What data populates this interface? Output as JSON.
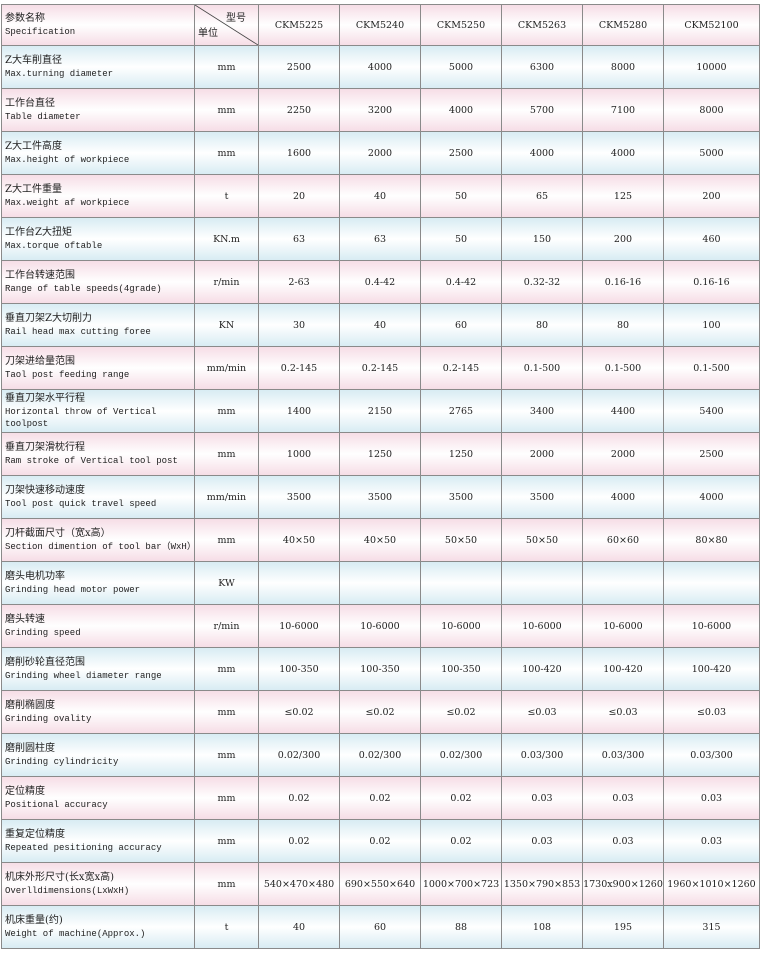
{
  "header": {
    "spec_cn": "参数名称",
    "spec_en": "Specification",
    "model_label": "型号",
    "unit_label": "单位",
    "models": [
      "CKM5225",
      "CKM5240",
      "CKM5250",
      "CKM5263",
      "CKM5280",
      "CKM52100"
    ]
  },
  "rows": [
    {
      "cn": "Z大车削直径",
      "en": "Max.turning diameter",
      "unit": "mm",
      "values": [
        "2500",
        "4000",
        "5000",
        "6300",
        "8000",
        "10000"
      ]
    },
    {
      "cn": "工作台直径",
      "en": "Table diameter",
      "unit": "mm",
      "values": [
        "2250",
        "3200",
        "4000",
        "5700",
        "7100",
        "8000"
      ]
    },
    {
      "cn": "Z大工件高度",
      "en": "Max.height of workpiece",
      "unit": "mm",
      "values": [
        "1600",
        "2000",
        "2500",
        "4000",
        "4000",
        "5000"
      ]
    },
    {
      "cn": "Z大工件重量",
      "en": "Max.weight af workpiece",
      "unit": "t",
      "values": [
        "20",
        "40",
        "50",
        "65",
        "125",
        "200"
      ]
    },
    {
      "cn": "工作台Z大扭矩",
      "en": "Max.torque oftable",
      "unit": "KN.m",
      "values": [
        "63",
        "63",
        "50",
        "150",
        "200",
        "460"
      ]
    },
    {
      "cn": "工作台转速范围",
      "en": "Range of table speeds(4grade)",
      "unit": "r/min",
      "values": [
        "2-63",
        "0.4-42",
        "0.4-42",
        "0.32-32",
        "0.16-16",
        "0.16-16"
      ]
    },
    {
      "cn": "垂直刀架Z大切削力",
      "en": "Rail head max cutting foree",
      "unit": "KN",
      "values": [
        "30",
        "40",
        "60",
        "80",
        "80",
        "100"
      ]
    },
    {
      "cn": "刀架进给量范围",
      "en": "Taol post feeding range",
      "unit": "mm/min",
      "values": [
        "0.2-145",
        "0.2-145",
        "0.2-145",
        "0.1-500",
        "0.1-500",
        "0.1-500"
      ]
    },
    {
      "cn": "垂直刀架水平行程",
      "en": "Horizontal throw of Vertical toolpost",
      "unit": "mm",
      "values": [
        "1400",
        "2150",
        "2765",
        "3400",
        "4400",
        "5400"
      ]
    },
    {
      "cn": "垂直刀架滑枕行程",
      "en": "Ram stroke of Vertical tool post",
      "unit": "mm",
      "values": [
        "1000",
        "1250",
        "1250",
        "2000",
        "2000",
        "2500"
      ]
    },
    {
      "cn": "刀架快速移动速度",
      "en": "Tool post quick travel speed",
      "unit": "mm/min",
      "values": [
        "3500",
        "3500",
        "3500",
        "3500",
        "4000",
        "4000"
      ]
    },
    {
      "cn": "刀杆截面尺寸（宽x高）",
      "en": "Section dimention of tool bar（WxH）",
      "unit": "mm",
      "values": [
        "40×50",
        "40×50",
        "50×50",
        "50×50",
        "60×60",
        "80×80"
      ]
    },
    {
      "cn": "磨头电机功率",
      "en": "Grinding head motor power",
      "unit": "KW",
      "values": []
    },
    {
      "cn": "磨头转速",
      "en": "Grinding speed",
      "unit": "r/min",
      "values": [
        "10-6000",
        "10-6000",
        "10-6000",
        "10-6000",
        "10-6000",
        "10-6000"
      ]
    },
    {
      "cn": "磨削砂轮直径范围",
      "en": "Grinding wheel diameter range",
      "unit": "mm",
      "values": [
        "100-350",
        "100-350",
        "100-350",
        "100-420",
        "100-420",
        "100-420"
      ]
    },
    {
      "cn": "磨削椭圆度",
      "en": "Grinding ovality",
      "unit": "mm",
      "values": [
        "≤0.02",
        "≤0.02",
        "≤0.02",
        "≤0.03",
        "≤0.03",
        "≤0.03"
      ]
    },
    {
      "cn": "磨削圆柱度",
      "en": "Grinding cylindricity",
      "unit": "mm",
      "values": [
        "0.02/300",
        "0.02/300",
        "0.02/300",
        "0.03/300",
        "0.03/300",
        "0.03/300"
      ]
    },
    {
      "cn": "定位精度",
      "en": "Positional accuracy",
      "unit": "mm",
      "values": [
        "0.02",
        "0.02",
        "0.02",
        "0.03",
        "0.03",
        "0.03"
      ]
    },
    {
      "cn": "重复定位精度",
      "en": "Repeated pesitioning accuracy",
      "unit": "mm",
      "values": [
        "0.02",
        "0.02",
        "0.02",
        "0.03",
        "0.03",
        "0.03"
      ]
    },
    {
      "cn": "机床外形尺寸(长x宽x高)",
      "en": "Overlldimensions(LxWxH)",
      "unit": "mm",
      "values": [
        "540×470×480",
        "690×550×640",
        "1000×700×723",
        "1350×790×853",
        "1730x900×1260",
        "1960×1010×1260"
      ]
    },
    {
      "cn": "机床重量(约)",
      "en": "Weight of machine(Approx.)",
      "unit": "t",
      "values": [
        "40",
        "60",
        "88",
        "108",
        "195",
        "315"
      ]
    }
  ]
}
